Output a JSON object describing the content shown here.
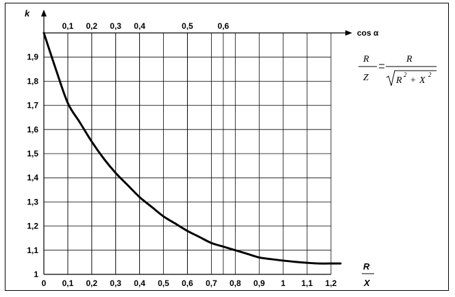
{
  "chart_data": {
    "type": "line",
    "ylabel": "k",
    "xlabel_top": "R",
    "xlabel_bottom": "X",
    "x_ticks": [
      "0",
      "0,1",
      "0,2",
      "0,3",
      "0,4",
      "0,5",
      "0,6",
      "0,7",
      "0,8",
      "0,9",
      "1",
      "1,1",
      "1,2"
    ],
    "x_tick_values": [
      0,
      0.1,
      0.2,
      0.3,
      0.4,
      0.5,
      0.6,
      0.7,
      0.8,
      0.9,
      1.0,
      1.1,
      1.2
    ],
    "y_ticks": [
      "1",
      "1,1",
      "1,2",
      "1,3",
      "1,4",
      "1,5",
      "1,6",
      "1,7",
      "1,8",
      "1,9"
    ],
    "y_tick_values": [
      1,
      1.1,
      1.2,
      1.3,
      1.4,
      1.5,
      1.6,
      1.7,
      1.8,
      1.9
    ],
    "xlim": [
      0,
      1.2
    ],
    "ylim": [
      1,
      2
    ],
    "grid": true,
    "secondary_axis": {
      "label": "cos α",
      "ticks": [
        "0,1",
        "0,2",
        "0,3",
        "0,4",
        "0,5",
        "0,6"
      ],
      "tick_positions_r_over_x": [
        0.1,
        0.2,
        0.3,
        0.4,
        0.6,
        0.75
      ]
    },
    "series": [
      {
        "x": [
          0,
          0.05,
          0.1,
          0.15,
          0.2,
          0.25,
          0.3,
          0.35,
          0.4,
          0.45,
          0.5,
          0.55,
          0.6,
          0.65,
          0.7,
          0.75,
          0.8,
          0.85,
          0.9,
          0.95,
          1.0,
          1.05,
          1.1,
          1.15,
          1.2
        ],
        "y": [
          2.0,
          1.85,
          1.71,
          1.63,
          1.55,
          1.48,
          1.42,
          1.37,
          1.32,
          1.28,
          1.24,
          1.21,
          1.18,
          1.155,
          1.13,
          1.115,
          1.1,
          1.085,
          1.07,
          1.063,
          1.057,
          1.052,
          1.048,
          1.045,
          1.045
        ]
      }
    ],
    "formula": {
      "lhs_num": "R",
      "lhs_den": "Z",
      "rhs_num": "R",
      "rhs_den_a": "R",
      "rhs_den_plus": "+",
      "rhs_den_b": "X",
      "sup": "2"
    }
  }
}
